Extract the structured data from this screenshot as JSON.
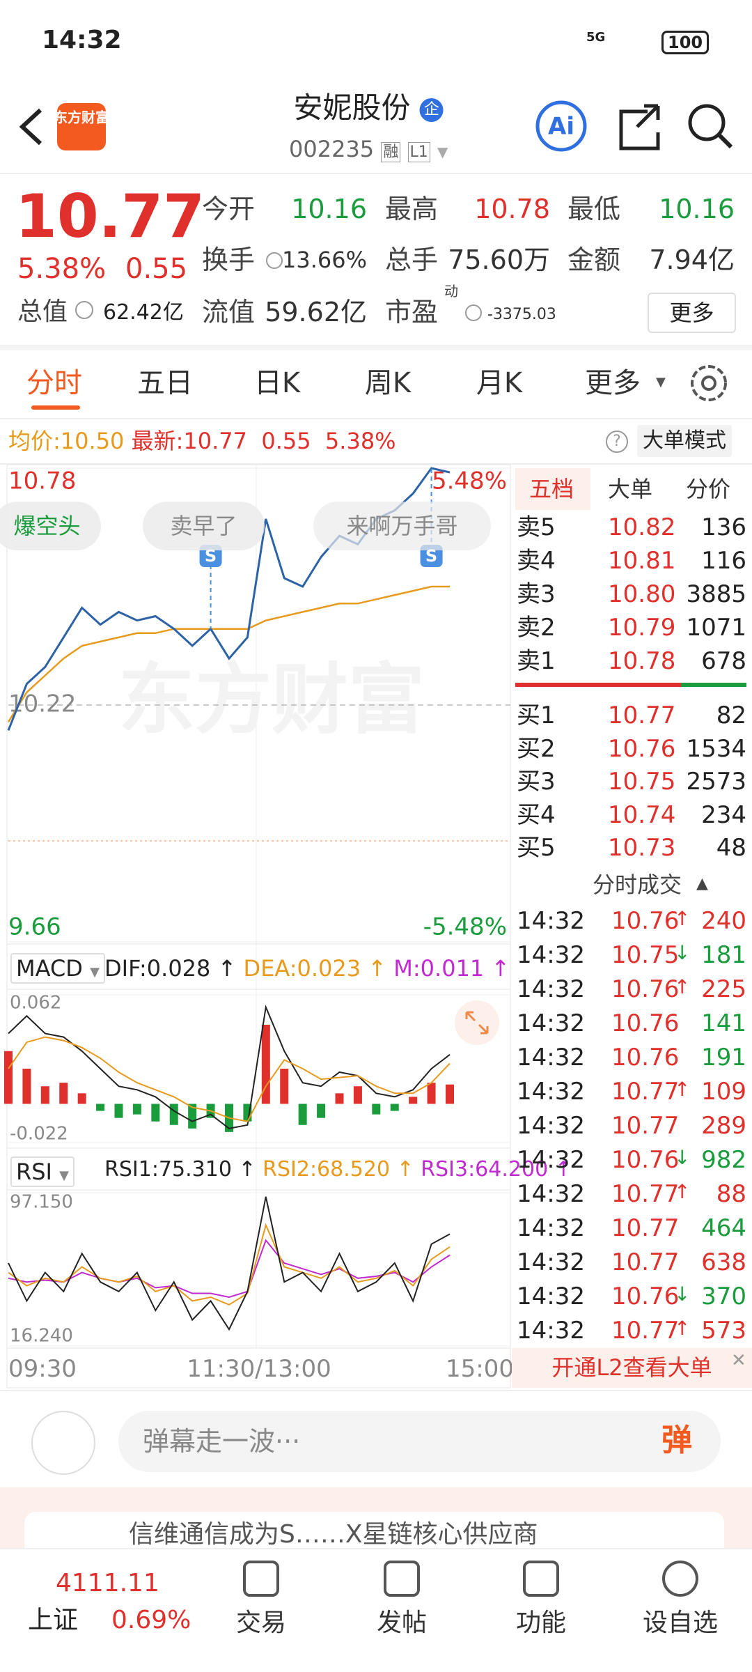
{
  "status_bar": {
    "time": "14:32",
    "network": "5G",
    "battery": "100"
  },
  "header": {
    "title": "安妮股份",
    "badge": "企",
    "code": "002235",
    "tags": [
      "融",
      "L1"
    ],
    "logo": "东方财富",
    "ai": "Ai"
  },
  "quote": {
    "price": "10.77",
    "change_pct": "5.38%",
    "change": "0.55",
    "market_cap_label": "总值",
    "market_cap": "62.42亿",
    "fields": [
      {
        "label": "今开",
        "value": "10.16",
        "color": "#1a9c3c"
      },
      {
        "label": "最高",
        "value": "10.78",
        "color": "#e0302c"
      },
      {
        "label": "最低",
        "value": "10.16",
        "color": "#1a9c3c"
      },
      {
        "label": "换手",
        "value": "13.66%",
        "color": "#333"
      },
      {
        "label": "总手",
        "value": "75.60万",
        "color": "#333"
      },
      {
        "label": "金额",
        "value": "7.94亿",
        "color": "#333"
      },
      {
        "label": "流值",
        "value": "59.62亿",
        "color": "#333"
      },
      {
        "label": "市盈",
        "value": "-3375.03",
        "sup": "动",
        "color": "#333"
      }
    ],
    "more": "更多"
  },
  "tabs": [
    "分时",
    "五日",
    "日K",
    "周K",
    "月K",
    "更多"
  ],
  "info": {
    "avg_label": "均价:",
    "avg": "10.50",
    "last_label": "最新:",
    "last": "10.77",
    "change": "0.55",
    "change_pct": "5.38%",
    "mode": "大单模式"
  },
  "intraday": {
    "ylim": [
      9.66,
      10.78
    ],
    "yticks": [
      10.78,
      10.22,
      9.66
    ],
    "pct_labels": [
      "5.48%",
      "-5.48%"
    ],
    "watermark": "东方财富",
    "bubbles": [
      "爆空头",
      "卖早了",
      "来啊万手哥"
    ],
    "markers": [
      "S",
      "S"
    ],
    "price": [
      10.16,
      10.27,
      10.31,
      10.38,
      10.45,
      10.41,
      10.44,
      10.42,
      10.43,
      10.4,
      10.36,
      10.4,
      10.33,
      10.38,
      10.66,
      10.52,
      10.5,
      10.57,
      10.62,
      10.6,
      10.66,
      10.68,
      10.72,
      10.78,
      10.77
    ],
    "avg": [
      10.18,
      10.25,
      10.29,
      10.33,
      10.36,
      10.37,
      10.38,
      10.39,
      10.39,
      10.4,
      10.4,
      10.4,
      10.4,
      10.4,
      10.42,
      10.43,
      10.44,
      10.45,
      10.46,
      10.46,
      10.47,
      10.48,
      10.49,
      10.5,
      10.5
    ]
  },
  "order_book": {
    "tabs": [
      "五档",
      "大单",
      "分价"
    ],
    "asks": [
      [
        "卖5",
        "10.82",
        "136"
      ],
      [
        "卖4",
        "10.81",
        "116"
      ],
      [
        "卖3",
        "10.80",
        "3885"
      ],
      [
        "卖2",
        "10.79",
        "1071"
      ],
      [
        "卖1",
        "10.78",
        "678"
      ]
    ],
    "bids": [
      [
        "买1",
        "10.77",
        "82"
      ],
      [
        "买2",
        "10.76",
        "1534"
      ],
      [
        "买3",
        "10.75",
        "2573"
      ],
      [
        "买4",
        "10.74",
        "234"
      ],
      [
        "买5",
        "10.73",
        "48"
      ]
    ]
  },
  "trades": {
    "title": "分时成交",
    "rows": [
      {
        "time": "14:32",
        "price": "10.76",
        "arrow": "↑",
        "volume": "240",
        "color": "#e0302c"
      },
      {
        "time": "14:32",
        "price": "10.75",
        "arrow": "↓",
        "volume": "181",
        "color": "#1a9c3c"
      },
      {
        "time": "14:32",
        "price": "10.76",
        "arrow": "↑",
        "volume": "225",
        "color": "#e0302c"
      },
      {
        "time": "14:32",
        "price": "10.76",
        "volume": "141",
        "color": "#1a9c3c"
      },
      {
        "time": "14:32",
        "price": "10.76",
        "volume": "191",
        "color": "#1a9c3c"
      },
      {
        "time": "14:32",
        "price": "10.77",
        "arrow": "↑",
        "volume": "109",
        "color": "#e0302c"
      },
      {
        "time": "14:32",
        "price": "10.77",
        "volume": "289",
        "color": "#e0302c"
      },
      {
        "time": "14:32",
        "price": "10.76",
        "arrow": "↓",
        "volume": "982",
        "color": "#1a9c3c"
      },
      {
        "time": "14:32",
        "price": "10.77",
        "arrow": "↑",
        "volume": "88",
        "color": "#e0302c"
      },
      {
        "time": "14:32",
        "price": "10.77",
        "volume": "464",
        "color": "#1a9c3c"
      },
      {
        "time": "14:32",
        "price": "10.77",
        "volume": "638",
        "color": "#e0302c"
      },
      {
        "time": "14:32",
        "price": "10.76",
        "arrow": "↓",
        "volume": "370",
        "color": "#1a9c3c"
      },
      {
        "time": "14:32",
        "price": "10.77",
        "arrow": "↑",
        "volume": "573",
        "color": "#e0302c"
      }
    ],
    "footer": "开通L2查看大单"
  },
  "macd": {
    "name": "MACD",
    "dif_label": "DIF:0.028 ↑",
    "dea_label": "DEA:0.023 ↑",
    "m_label": "M:0.011 ↑",
    "ylim": [
      -0.022,
      0.062
    ],
    "yticks": [
      0.062,
      -0.022
    ],
    "dif": [
      0.04,
      0.05,
      0.04,
      0.038,
      0.03,
      0.02,
      0.01,
      0.008,
      0.004,
      -0.004,
      -0.01,
      -0.006,
      -0.014,
      -0.012,
      0.055,
      0.03,
      0.012,
      0.01,
      0.018,
      0.016,
      0.006,
      0.004,
      0.008,
      0.02,
      0.028
    ],
    "dea": [
      0.02,
      0.035,
      0.038,
      0.036,
      0.032,
      0.026,
      0.018,
      0.012,
      0.008,
      0.004,
      -0.002,
      -0.004,
      -0.008,
      -0.01,
      0.01,
      0.025,
      0.02,
      0.014,
      0.015,
      0.016,
      0.01,
      0.006,
      0.006,
      0.012,
      0.023
    ],
    "m": [
      0.03,
      0.02,
      0.01,
      0.012,
      0.006,
      -0.004,
      -0.008,
      -0.006,
      -0.01,
      -0.012,
      -0.014,
      -0.008,
      -0.016,
      -0.01,
      0.045,
      0.02,
      -0.012,
      -0.008,
      0.006,
      0.01,
      -0.006,
      -0.004,
      0.004,
      0.012,
      0.011
    ]
  },
  "rsi": {
    "name": "RSI",
    "labels": [
      "RSI1:75.310 ↑",
      "RSI2:68.520 ↑",
      "RSI3:64.200 ↑"
    ],
    "ylim": [
      16.24,
      97.15
    ],
    "yticks": [
      {
        "value": 97.15,
        "label": "97.150"
      },
      {
        "value": 16.24,
        "label": "16.240"
      }
    ],
    "rsi1": [
      60,
      40,
      55,
      45,
      65,
      50,
      45,
      55,
      35,
      50,
      30,
      40,
      25,
      45,
      95,
      50,
      55,
      45,
      65,
      45,
      50,
      60,
      40,
      70,
      75.31
    ],
    "rsi2": [
      55,
      48,
      52,
      50,
      58,
      52,
      50,
      53,
      45,
      48,
      40,
      42,
      38,
      44,
      80,
      58,
      55,
      52,
      58,
      50,
      52,
      56,
      48,
      62,
      68.52
    ],
    "rsi3": [
      52,
      50,
      51,
      50,
      55,
      52,
      50,
      52,
      47,
      48,
      44,
      44,
      42,
      45,
      72,
      60,
      57,
      54,
      57,
      52,
      53,
      55,
      50,
      58,
      64.2
    ]
  },
  "time_axis": [
    "09:30",
    "11:30/13:00",
    "15:00"
  ],
  "comment": {
    "placeholder": "弹幕走一波···",
    "button": "弹"
  },
  "ad": {
    "text": "信维通信成为S……X星链核心供应商"
  },
  "bottom_nav": {
    "index_value": "4111.11",
    "index_name": "上证",
    "index_change": "0.69%",
    "items": [
      "交易",
      "发帖",
      "功能",
      "设自选"
    ]
  }
}
